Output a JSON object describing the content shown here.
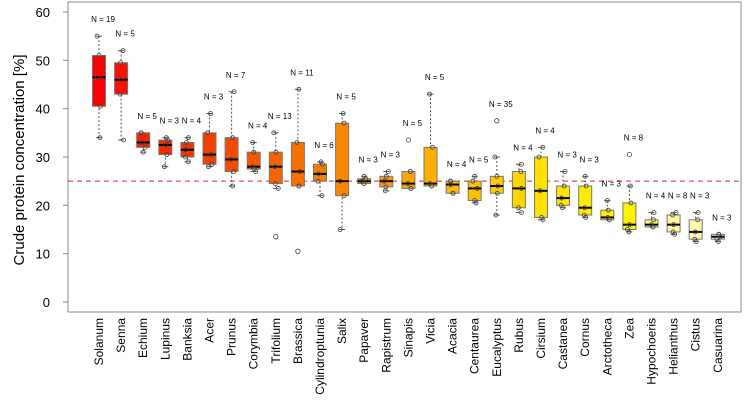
{
  "chart_data": {
    "type": "box",
    "title": "",
    "xlabel": "",
    "ylabel": "Crude protein concentration [%]",
    "ylim": [
      0,
      60
    ],
    "yticks": [
      0,
      10,
      20,
      30,
      40,
      50,
      60
    ],
    "reference_line": {
      "value": 25,
      "style": "dashed",
      "color": "#d62728"
    },
    "categories": [
      "Solanum",
      "Senna",
      "Echium",
      "Lupinus",
      "Banksia",
      "Acer",
      "Prunus",
      "Corymbia",
      "Trifolium",
      "Brassica",
      "Cylindroptunia",
      "Salix",
      "Papaver",
      "Rapistrum",
      "Sinapis",
      "Vicia",
      "Acacia",
      "Centaurea",
      "Eucalyptus",
      "Rubus",
      "Cirsium",
      "Castanea",
      "Cornus",
      "Arctotheca",
      "Zea",
      "Hypochoeris",
      "Helianthus",
      "Cistus",
      "Casuarina"
    ],
    "n_labels": [
      "N = 19",
      "N = 5",
      "N = 5",
      "N = 3",
      "N = 4",
      "N = 3",
      "N = 7",
      "N = 4",
      "N = 13",
      "N = 11",
      "N = 6",
      "N = 5",
      "N = 3",
      "N = 3",
      "N = 5",
      "N = 5",
      "N = 4",
      "N = 5",
      "N = 35",
      "N = 4",
      "N = 4",
      "N = 3",
      "N = 3",
      "N = 3",
      "N = 8",
      "N = 4",
      "N = 8",
      "N = 3",
      "N = 3"
    ],
    "boxes": [
      {
        "min": 34,
        "q1": 40.5,
        "median": 46.5,
        "q3": 51,
        "max": 55,
        "outliers": []
      },
      {
        "min": 33.5,
        "q1": 43,
        "median": 46,
        "q3": 49.5,
        "max": 52,
        "outliers": []
      },
      {
        "min": 31,
        "q1": 32,
        "median": 33,
        "q3": 35,
        "max": 35,
        "outliers": []
      },
      {
        "min": 28,
        "q1": 30.5,
        "median": 32.5,
        "q3": 33.5,
        "max": 34,
        "outliers": []
      },
      {
        "min": 29,
        "q1": 30,
        "median": 31.5,
        "q3": 33,
        "max": 34,
        "outliers": []
      },
      {
        "min": 28,
        "q1": 28.5,
        "median": 30.5,
        "q3": 35,
        "max": 39,
        "outliers": []
      },
      {
        "min": 24,
        "q1": 27,
        "median": 29.5,
        "q3": 34,
        "max": 43.5,
        "outliers": []
      },
      {
        "min": 27,
        "q1": 27.5,
        "median": 28,
        "q3": 31,
        "max": 33,
        "outliers": []
      },
      {
        "min": 23.5,
        "q1": 24.5,
        "median": 28,
        "q3": 31,
        "max": 35,
        "outliers": [
          13.5
        ]
      },
      {
        "min": 24,
        "q1": 24,
        "median": 27,
        "q3": 33,
        "max": 44,
        "outliers": [
          10.5
        ]
      },
      {
        "min": 22,
        "q1": 25,
        "median": 26.5,
        "q3": 28.5,
        "max": 29,
        "outliers": []
      },
      {
        "min": 15,
        "q1": 22,
        "median": 25,
        "q3": 37,
        "max": 39,
        "outliers": []
      },
      {
        "min": 24.5,
        "q1": 24.5,
        "median": 25,
        "q3": 25.5,
        "max": 26,
        "outliers": []
      },
      {
        "min": 23,
        "q1": 23.8,
        "median": 25,
        "q3": 26,
        "max": 27,
        "outliers": []
      },
      {
        "min": 23.5,
        "q1": 23.5,
        "median": 24.5,
        "q3": 27,
        "max": 27,
        "outliers": [
          33.5
        ]
      },
      {
        "min": 24,
        "q1": 24,
        "median": 24.5,
        "q3": 32,
        "max": 43,
        "outliers": []
      },
      {
        "min": 22.5,
        "q1": 22.5,
        "median": 24.3,
        "q3": 25,
        "max": 25,
        "outliers": []
      },
      {
        "min": 20.5,
        "q1": 21,
        "median": 23.5,
        "q3": 25,
        "max": 26,
        "outliers": []
      },
      {
        "min": 18,
        "q1": 22.5,
        "median": 24,
        "q3": 26,
        "max": 30,
        "outliers": [
          37.5
        ]
      },
      {
        "min": 18.5,
        "q1": 19.5,
        "median": 23.5,
        "q3": 27,
        "max": 28.5,
        "outliers": []
      },
      {
        "min": 17,
        "q1": 17.5,
        "median": 23,
        "q3": 30,
        "max": 32,
        "outliers": []
      },
      {
        "min": 19.5,
        "q1": 20,
        "median": 21.5,
        "q3": 24,
        "max": 27,
        "outliers": []
      },
      {
        "min": 17.5,
        "q1": 18,
        "median": 19.5,
        "q3": 24,
        "max": 26,
        "outliers": []
      },
      {
        "min": 17,
        "q1": 17,
        "median": 17.5,
        "q3": 19,
        "max": 21,
        "outliers": []
      },
      {
        "min": 14.5,
        "q1": 15,
        "median": 16,
        "q3": 20.5,
        "max": 24,
        "outliers": [
          30.5
        ]
      },
      {
        "min": 15.5,
        "q1": 15.5,
        "median": 16,
        "q3": 17,
        "max": 18.5,
        "outliers": []
      },
      {
        "min": 14,
        "q1": 14.5,
        "median": 16,
        "q3": 18,
        "max": 18.5,
        "outliers": []
      },
      {
        "min": 12.5,
        "q1": 13,
        "median": 14.5,
        "q3": 17,
        "max": 18.5,
        "outliers": []
      },
      {
        "min": 12.5,
        "q1": 13,
        "median": 13.5,
        "q3": 14,
        "max": 14,
        "outliers": []
      }
    ],
    "colors": [
      "#ff0000",
      "#fa1200",
      "#f52400",
      "#f22c00",
      "#f03500",
      "#f04000",
      "#f24c00",
      "#f45800",
      "#f66400",
      "#f87000",
      "#fa7c00",
      "#fb8600",
      "#fc9000",
      "#fd9a00",
      "#fea400",
      "#ffae00",
      "#ffb800",
      "#ffc200",
      "#ffcc00",
      "#ffd600",
      "#ffe000",
      "#ffe600",
      "#ffec00",
      "#fff000",
      "#fff300",
      "#fff566",
      "#fff799",
      "#fff9b0",
      "#fffbcc"
    ]
  }
}
